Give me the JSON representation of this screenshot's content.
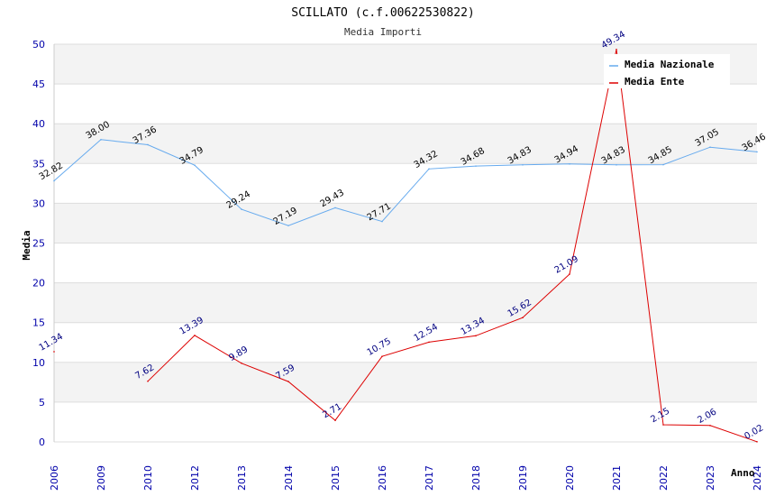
{
  "chart_data": {
    "type": "line",
    "title": "SCILLATO (c.f.00622530822)",
    "subtitle": "Media Importi",
    "xlabel": "Anno",
    "ylabel": "Media",
    "ylim": [
      0,
      50
    ],
    "yticks": [
      0,
      5,
      10,
      15,
      20,
      25,
      30,
      35,
      40,
      45,
      50
    ],
    "grid": true,
    "legend_position": "top-right",
    "categories": [
      "2006",
      "2009",
      "2010",
      "2012",
      "2013",
      "2014",
      "2015",
      "2016",
      "2017",
      "2018",
      "2019",
      "2020",
      "2021",
      "2022",
      "2023",
      "2024"
    ],
    "series": [
      {
        "name": "Media Nazionale",
        "color": "#66aaee",
        "label_color": "#000000",
        "values": [
          32.82,
          38.0,
          37.36,
          34.79,
          29.24,
          27.19,
          29.43,
          27.71,
          34.32,
          34.68,
          34.83,
          34.94,
          34.83,
          34.85,
          37.05,
          36.46
        ],
        "labels": [
          "32.82",
          "38.00",
          "37.36",
          "34.79",
          "29.24",
          "27.19",
          "29.43",
          "27.71",
          "34.32",
          "34.68",
          "34.83",
          "34.94",
          "34.83",
          "34.85",
          "37.05",
          "36.46"
        ]
      },
      {
        "name": "Media Ente",
        "color": "#dd0000",
        "label_color": "#000080",
        "values": [
          11.34,
          null,
          7.62,
          13.39,
          9.89,
          7.59,
          2.71,
          10.75,
          12.54,
          13.34,
          15.62,
          21.09,
          49.34,
          2.15,
          2.06,
          0.02
        ],
        "labels": [
          "11.34",
          "",
          "7.62",
          "13.39",
          "9.89",
          "7.59",
          "2.71",
          "10.75",
          "12.54",
          "13.34",
          "15.62",
          "21.09",
          "49.34",
          "2.15",
          "2.06",
          "0.02"
        ]
      }
    ]
  }
}
